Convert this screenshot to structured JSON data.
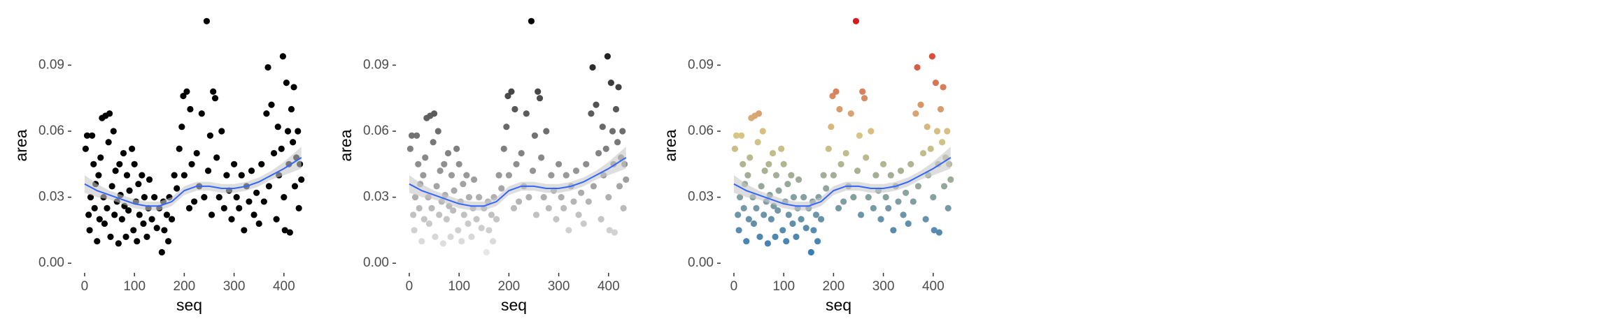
{
  "chart_data": [
    {
      "type": "scatter",
      "x_label": "seq",
      "y_label": "area",
      "xlim": [
        -21,
        441
      ],
      "ylim": [
        -0.005,
        0.112
      ],
      "xticks": [
        0,
        100,
        200,
        300,
        400
      ],
      "yticks": [
        {
          "value": 0,
          "label": "0.00"
        },
        0.03,
        0.06,
        0.09
      ],
      "series": [
        {
          "color": "#000000",
          "x": [
            2,
            5,
            8,
            10,
            12,
            15,
            18,
            20,
            22,
            25,
            28,
            30,
            32,
            35,
            38,
            40,
            42,
            45,
            48,
            50,
            52,
            55,
            58,
            60,
            62,
            65,
            68,
            70,
            72,
            75,
            78,
            80,
            83,
            85,
            88,
            90,
            95,
            98,
            100,
            103,
            105,
            108,
            110,
            115,
            118,
            120,
            125,
            128,
            130,
            135,
            140,
            145,
            150,
            155,
            158,
            160,
            165,
            168,
            170,
            175,
            180,
            185,
            190,
            195,
            198,
            200,
            205,
            210,
            212,
            215,
            220,
            225,
            230,
            235,
            240,
            245,
            248,
            252,
            255,
            258,
            262,
            265,
            270,
            275,
            280,
            285,
            290,
            295,
            300,
            305,
            310,
            315,
            320,
            325,
            330,
            335,
            340,
            345,
            350,
            355,
            360,
            365,
            368,
            370,
            375,
            380,
            385,
            388,
            390,
            395,
            398,
            400,
            402,
            405,
            408,
            410,
            412,
            415,
            418,
            420,
            422,
            425,
            428,
            430,
            432,
            435
          ],
          "values": [
            0.052,
            0.058,
            0.022,
            0.015,
            0.03,
            0.058,
            0.045,
            0.025,
            0.036,
            0.01,
            0.04,
            0.02,
            0.048,
            0.066,
            0.03,
            0.018,
            0.067,
            0.025,
            0.055,
            0.068,
            0.012,
            0.035,
            0.06,
            0.022,
            0.042,
            0.028,
            0.009,
            0.045,
            0.031,
            0.02,
            0.05,
            0.026,
            0.012,
            0.04,
            0.024,
            0.033,
            0.052,
            0.015,
            0.045,
            0.028,
            0.01,
            0.036,
            0.022,
            0.04,
            0.018,
            0.03,
            0.012,
            0.025,
            0.038,
            0.02,
            0.03,
            0.016,
            0.025,
            0.005,
            0.028,
            0.015,
            0.022,
            0.01,
            0.03,
            0.02,
            0.04,
            0.034,
            0.052,
            0.062,
            0.076,
            0.04,
            0.078,
            0.025,
            0.07,
            0.045,
            0.028,
            0.05,
            0.035,
            0.068,
            0.03,
            0.11,
            0.042,
            0.058,
            0.022,
            0.078,
            0.075,
            0.048,
            0.03,
            0.06,
            0.025,
            0.04,
            0.033,
            0.02,
            0.045,
            0.03,
            0.025,
            0.04,
            0.015,
            0.035,
            0.028,
            0.042,
            0.022,
            0.032,
            0.018,
            0.045,
            0.028,
            0.068,
            0.089,
            0.035,
            0.072,
            0.05,
            0.02,
            0.062,
            0.04,
            0.052,
            0.094,
            0.03,
            0.015,
            0.082,
            0.06,
            0.045,
            0.014,
            0.07,
            0.055,
            0.08,
            0.035,
            0.048,
            0.06,
            0.025,
            0.045,
            0.038
          ]
        }
      ],
      "smooth": {
        "type": "line",
        "color": "#3366ff",
        "band_color": "#c8c8c8",
        "x": [
          0,
          25,
          50,
          75,
          100,
          125,
          150,
          175,
          200,
          225,
          250,
          275,
          300,
          325,
          350,
          375,
          400,
          435
        ],
        "values": [
          0.036,
          0.033,
          0.031,
          0.029,
          0.027,
          0.026,
          0.026,
          0.028,
          0.033,
          0.035,
          0.035,
          0.034,
          0.034,
          0.035,
          0.037,
          0.04,
          0.043,
          0.048
        ],
        "lower": [
          0.032,
          0.03,
          0.029,
          0.027,
          0.025,
          0.024,
          0.024,
          0.026,
          0.031,
          0.033,
          0.033,
          0.032,
          0.032,
          0.033,
          0.035,
          0.038,
          0.04,
          0.043
        ],
        "upper": [
          0.04,
          0.036,
          0.033,
          0.031,
          0.029,
          0.028,
          0.028,
          0.03,
          0.035,
          0.037,
          0.037,
          0.036,
          0.036,
          0.037,
          0.039,
          0.042,
          0.046,
          0.053
        ]
      }
    },
    {
      "type": "scatter",
      "x_label": "seq",
      "y_label": "area",
      "xlim": [
        -21,
        441
      ],
      "ylim": [
        -0.005,
        0.112
      ],
      "xticks": [
        0,
        100,
        200,
        300,
        400
      ],
      "yticks": [
        {
          "value": 0,
          "label": "0.00"
        },
        0.03,
        0.06,
        0.09
      ],
      "series": [
        {
          "color_scale": [
            "#e6e6e6",
            "#000000"
          ],
          "x": [
            2,
            5,
            8,
            10,
            12,
            15,
            18,
            20,
            22,
            25,
            28,
            30,
            32,
            35,
            38,
            40,
            42,
            45,
            48,
            50,
            52,
            55,
            58,
            60,
            62,
            65,
            68,
            70,
            72,
            75,
            78,
            80,
            83,
            85,
            88,
            90,
            95,
            98,
            100,
            103,
            105,
            108,
            110,
            115,
            118,
            120,
            125,
            128,
            130,
            135,
            140,
            145,
            150,
            155,
            158,
            160,
            165,
            168,
            170,
            175,
            180,
            185,
            190,
            195,
            198,
            200,
            205,
            210,
            212,
            215,
            220,
            225,
            230,
            235,
            240,
            245,
            248,
            252,
            255,
            258,
            262,
            265,
            270,
            275,
            280,
            285,
            290,
            295,
            300,
            305,
            310,
            315,
            320,
            325,
            330,
            335,
            340,
            345,
            350,
            355,
            360,
            365,
            368,
            370,
            375,
            380,
            385,
            388,
            390,
            395,
            398,
            400,
            402,
            405,
            408,
            410,
            412,
            415,
            418,
            420,
            422,
            425,
            428,
            430,
            432,
            435
          ],
          "values": [
            0.052,
            0.058,
            0.022,
            0.015,
            0.03,
            0.058,
            0.045,
            0.025,
            0.036,
            0.01,
            0.04,
            0.02,
            0.048,
            0.066,
            0.03,
            0.018,
            0.067,
            0.025,
            0.055,
            0.068,
            0.012,
            0.035,
            0.06,
            0.022,
            0.042,
            0.028,
            0.009,
            0.045,
            0.031,
            0.02,
            0.05,
            0.026,
            0.012,
            0.04,
            0.024,
            0.033,
            0.052,
            0.015,
            0.045,
            0.028,
            0.01,
            0.036,
            0.022,
            0.04,
            0.018,
            0.03,
            0.012,
            0.025,
            0.038,
            0.02,
            0.03,
            0.016,
            0.025,
            0.005,
            0.028,
            0.015,
            0.022,
            0.01,
            0.03,
            0.02,
            0.04,
            0.034,
            0.052,
            0.062,
            0.076,
            0.04,
            0.078,
            0.025,
            0.07,
            0.045,
            0.028,
            0.05,
            0.035,
            0.068,
            0.03,
            0.11,
            0.042,
            0.058,
            0.022,
            0.078,
            0.075,
            0.048,
            0.03,
            0.06,
            0.025,
            0.04,
            0.033,
            0.02,
            0.045,
            0.03,
            0.025,
            0.04,
            0.015,
            0.035,
            0.028,
            0.042,
            0.022,
            0.032,
            0.018,
            0.045,
            0.028,
            0.068,
            0.089,
            0.035,
            0.072,
            0.05,
            0.02,
            0.062,
            0.04,
            0.052,
            0.094,
            0.03,
            0.015,
            0.082,
            0.06,
            0.045,
            0.014,
            0.07,
            0.055,
            0.08,
            0.035,
            0.048,
            0.06,
            0.025,
            0.045,
            0.038
          ]
        }
      ],
      "smooth": {
        "type": "line",
        "color": "#3366ff",
        "band_color": "#c8c8c8",
        "x": [
          0,
          25,
          50,
          75,
          100,
          125,
          150,
          175,
          200,
          225,
          250,
          275,
          300,
          325,
          350,
          375,
          400,
          435
        ],
        "values": [
          0.036,
          0.033,
          0.031,
          0.029,
          0.027,
          0.026,
          0.026,
          0.028,
          0.033,
          0.035,
          0.035,
          0.034,
          0.034,
          0.035,
          0.037,
          0.04,
          0.043,
          0.048
        ],
        "lower": [
          0.032,
          0.03,
          0.029,
          0.027,
          0.025,
          0.024,
          0.024,
          0.026,
          0.031,
          0.033,
          0.033,
          0.032,
          0.032,
          0.033,
          0.035,
          0.038,
          0.04,
          0.043
        ],
        "upper": [
          0.04,
          0.036,
          0.033,
          0.031,
          0.029,
          0.028,
          0.028,
          0.03,
          0.035,
          0.037,
          0.037,
          0.036,
          0.036,
          0.037,
          0.039,
          0.042,
          0.046,
          0.053
        ]
      }
    },
    {
      "type": "scatter",
      "x_label": "seq",
      "y_label": "area",
      "xlim": [
        -21,
        441
      ],
      "ylim": [
        -0.005,
        0.112
      ],
      "xticks": [
        0,
        100,
        200,
        300,
        400
      ],
      "yticks": [
        {
          "value": 0,
          "label": "0.00"
        },
        0.03,
        0.06,
        0.09
      ],
      "series": [
        {
          "color_scale": [
            "#3a7db8",
            "#d8c685",
            "#d7191c"
          ],
          "x": [
            2,
            5,
            8,
            10,
            12,
            15,
            18,
            20,
            22,
            25,
            28,
            30,
            32,
            35,
            38,
            40,
            42,
            45,
            48,
            50,
            52,
            55,
            58,
            60,
            62,
            65,
            68,
            70,
            72,
            75,
            78,
            80,
            83,
            85,
            88,
            90,
            95,
            98,
            100,
            103,
            105,
            108,
            110,
            115,
            118,
            120,
            125,
            128,
            130,
            135,
            140,
            145,
            150,
            155,
            158,
            160,
            165,
            168,
            170,
            175,
            180,
            185,
            190,
            195,
            198,
            200,
            205,
            210,
            212,
            215,
            220,
            225,
            230,
            235,
            240,
            245,
            248,
            252,
            255,
            258,
            262,
            265,
            270,
            275,
            280,
            285,
            290,
            295,
            300,
            305,
            310,
            315,
            320,
            325,
            330,
            335,
            340,
            345,
            350,
            355,
            360,
            365,
            368,
            370,
            375,
            380,
            385,
            388,
            390,
            395,
            398,
            400,
            402,
            405,
            408,
            410,
            412,
            415,
            418,
            420,
            422,
            425,
            428,
            430,
            432,
            435
          ],
          "values": [
            0.052,
            0.058,
            0.022,
            0.015,
            0.03,
            0.058,
            0.045,
            0.025,
            0.036,
            0.01,
            0.04,
            0.02,
            0.048,
            0.066,
            0.03,
            0.018,
            0.067,
            0.025,
            0.055,
            0.068,
            0.012,
            0.035,
            0.06,
            0.022,
            0.042,
            0.028,
            0.009,
            0.045,
            0.031,
            0.02,
            0.05,
            0.026,
            0.012,
            0.04,
            0.024,
            0.033,
            0.052,
            0.015,
            0.045,
            0.028,
            0.01,
            0.036,
            0.022,
            0.04,
            0.018,
            0.03,
            0.012,
            0.025,
            0.038,
            0.02,
            0.03,
            0.016,
            0.025,
            0.005,
            0.028,
            0.015,
            0.022,
            0.01,
            0.03,
            0.02,
            0.04,
            0.034,
            0.052,
            0.062,
            0.076,
            0.04,
            0.078,
            0.025,
            0.07,
            0.045,
            0.028,
            0.05,
            0.035,
            0.068,
            0.03,
            0.11,
            0.042,
            0.058,
            0.022,
            0.078,
            0.075,
            0.048,
            0.03,
            0.06,
            0.025,
            0.04,
            0.033,
            0.02,
            0.045,
            0.03,
            0.025,
            0.04,
            0.015,
            0.035,
            0.028,
            0.042,
            0.022,
            0.032,
            0.018,
            0.045,
            0.028,
            0.068,
            0.089,
            0.035,
            0.072,
            0.05,
            0.02,
            0.062,
            0.04,
            0.052,
            0.094,
            0.03,
            0.015,
            0.082,
            0.06,
            0.045,
            0.014,
            0.07,
            0.055,
            0.08,
            0.035,
            0.048,
            0.06,
            0.025,
            0.045,
            0.038
          ]
        }
      ],
      "smooth": {
        "type": "line",
        "color": "#3366ff",
        "band_color": "#c8c8c8",
        "x": [
          0,
          25,
          50,
          75,
          100,
          125,
          150,
          175,
          200,
          225,
          250,
          275,
          300,
          325,
          350,
          375,
          400,
          435
        ],
        "values": [
          0.036,
          0.033,
          0.031,
          0.029,
          0.027,
          0.026,
          0.026,
          0.028,
          0.033,
          0.035,
          0.035,
          0.034,
          0.034,
          0.035,
          0.037,
          0.04,
          0.043,
          0.048
        ],
        "lower": [
          0.032,
          0.03,
          0.029,
          0.027,
          0.025,
          0.024,
          0.024,
          0.026,
          0.031,
          0.033,
          0.033,
          0.032,
          0.032,
          0.033,
          0.035,
          0.038,
          0.04,
          0.043
        ],
        "upper": [
          0.04,
          0.036,
          0.033,
          0.031,
          0.029,
          0.028,
          0.028,
          0.03,
          0.035,
          0.037,
          0.037,
          0.036,
          0.036,
          0.037,
          0.039,
          0.042,
          0.046,
          0.053
        ]
      }
    }
  ]
}
